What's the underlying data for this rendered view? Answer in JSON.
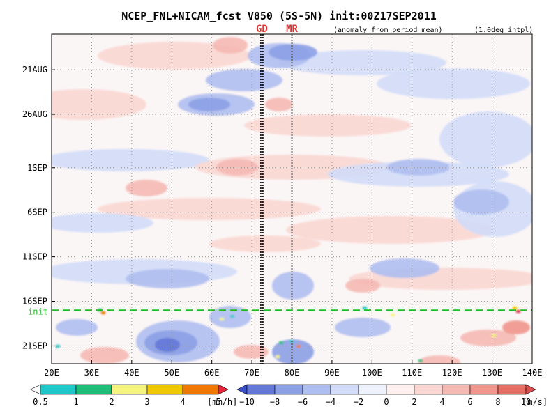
{
  "chart_data": {
    "type": "heatmap",
    "title": "NCEP_FNL+NICAM_fcst V850 (5S-5N) init:00Z17SEP2011",
    "subtitle_left": "(anomaly from period mean)",
    "subtitle_right": "(1.0deg intpl)",
    "x_ticks": [
      "20E",
      "30E",
      "40E",
      "50E",
      "60E",
      "70E",
      "80E",
      "90E",
      "100E",
      "110E",
      "120E",
      "130E",
      "140E"
    ],
    "x_values": [
      20,
      30,
      40,
      50,
      60,
      70,
      80,
      90,
      100,
      110,
      120,
      130,
      140
    ],
    "xlim": [
      20,
      140
    ],
    "y_ticks": [
      "21AUG",
      "26AUG",
      "1SEP",
      "6SEP",
      "11SEP",
      "16SEP",
      "21SEP"
    ],
    "y_values": [
      "2011-08-21",
      "2011-08-26",
      "2011-09-01",
      "2011-09-06",
      "2011-09-11",
      "2011-09-16",
      "2011-09-21"
    ],
    "ylim": [
      "2011-08-17",
      "2011-09-23"
    ],
    "init_label": "init",
    "init_date": "2011-09-17",
    "vertical_markers": [
      {
        "label": "GD",
        "lon": 72.5
      },
      {
        "label": "MR",
        "lon": 80
      }
    ],
    "grid": true,
    "rain_colorbar": {
      "labels": [
        "0.5",
        "1",
        "2",
        "3",
        "4",
        "5"
      ],
      "unit": "[mm/h]",
      "colors": [
        "#ffffff",
        "#1ec8c8",
        "#1ebe78",
        "#f5f57d",
        "#f0c800",
        "#f07800",
        "#e6283c"
      ]
    },
    "wind_colorbar": {
      "labels": [
        "−10",
        "−8",
        "−6",
        "−4",
        "−2",
        "0",
        "2",
        "4",
        "6",
        "8",
        "10"
      ],
      "unit": "[m/s]",
      "colors": [
        "#3c50c8",
        "#6478d7",
        "#8ca0e6",
        "#afbef0",
        "#d2dcf8",
        "#eef2fc",
        "#fdf0ee",
        "#fad7d2",
        "#f5b9b4",
        "#f0968c",
        "#e66e64",
        "#dc5050"
      ]
    },
    "features": [
      {
        "label": "negative anomaly band",
        "lon_range": [
          55,
          85
        ],
        "date": "2011-08-26"
      },
      {
        "label": "negative anomaly",
        "lon_range": [
          40,
          70
        ],
        "date": "2011-09-21"
      },
      {
        "label": "negative anomaly",
        "lon_range": [
          78,
          95
        ],
        "date": "2011-09-22"
      }
    ]
  }
}
